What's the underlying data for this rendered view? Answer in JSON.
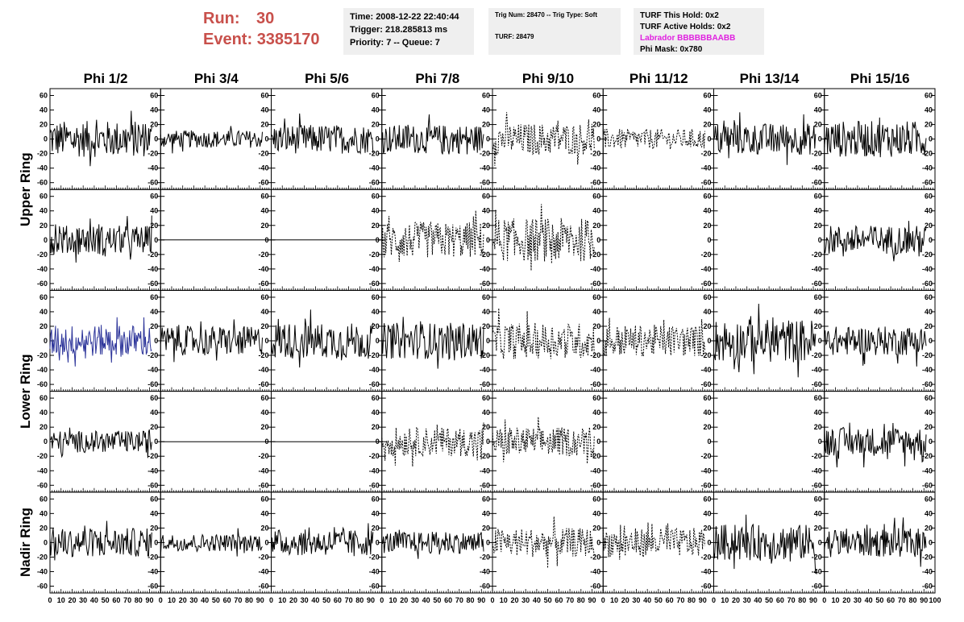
{
  "run": {
    "run_label": "Run:",
    "run_value": "30",
    "event_label": "Event:",
    "event_value": "3385170"
  },
  "info_box_1": {
    "time": "Time: 2008-12-22 22:40:44",
    "trigger": "Trigger: 218.285813 ms",
    "priority": "Priority: 7 -- Queue: 7"
  },
  "info_box_2": {
    "trig": "Trig Num: 28470 -- Trig Type: Soft",
    "turf": "TURF: 28479"
  },
  "info_box_3": {
    "hold": "TURF This Hold: 0x2",
    "active": "TURF Active Holds: 0x2",
    "labrador": "Labrador BBBBBBAABB",
    "phimask": "Phi Mask: 0x780"
  },
  "colors": {
    "run_text": "#c8504b",
    "labrador_text": "#e020e0",
    "highlight_trace": "#2b3399",
    "trace": "#000000",
    "box_bg": "#efefef"
  },
  "chart_data": {
    "type": "line",
    "columns": [
      "Phi 1/2",
      "Phi 3/4",
      "Phi 5/6",
      "Phi 7/8",
      "Phi 9/10",
      "Phi 11/12",
      "Phi 13/14",
      "Phi 15/16"
    ],
    "rows": [
      "Upper Ring",
      "Lower Ring",
      "Nadir Ring"
    ],
    "xlim": [
      0,
      100
    ],
    "ylim": [
      -65,
      65
    ],
    "y_ticks": [
      -60,
      -40,
      -20,
      0,
      20,
      40,
      60
    ],
    "x_ticks": [
      0,
      10,
      20,
      30,
      40,
      50,
      60,
      70,
      80,
      90,
      100
    ],
    "x_tick_labels": [
      "0",
      "10",
      "20",
      "30",
      "40",
      "50",
      "60",
      "70",
      "80",
      "90",
      "100"
    ],
    "grid": false,
    "panels": [
      [
        "solid",
        "solid",
        "solid",
        "solid",
        "dashed",
        "dashed",
        "solid",
        "solid"
      ],
      [
        "solid",
        "flat",
        "flat",
        "dashed",
        "dashed",
        "empty",
        "empty",
        "solid"
      ],
      [
        "blue",
        "solid",
        "solid",
        "solid",
        "dashed",
        "dashed",
        "solid",
        "solid"
      ],
      [
        "solid",
        "flat",
        "flat",
        "dashed",
        "dashed",
        "empty",
        "empty",
        "solid"
      ],
      [
        "solid",
        "solid",
        "solid",
        "solid",
        "dashed",
        "dashed",
        "solid",
        "solid"
      ]
    ],
    "amplitudes": [
      [
        25,
        12,
        20,
        20,
        22,
        14,
        22,
        25
      ],
      [
        20,
        0,
        0,
        25,
        30,
        0,
        0,
        20
      ],
      [
        22,
        20,
        25,
        25,
        25,
        22,
        30,
        20
      ],
      [
        15,
        0,
        0,
        20,
        20,
        0,
        0,
        20
      ],
      [
        20,
        12,
        18,
        15,
        20,
        20,
        25,
        20
      ]
    ]
  }
}
